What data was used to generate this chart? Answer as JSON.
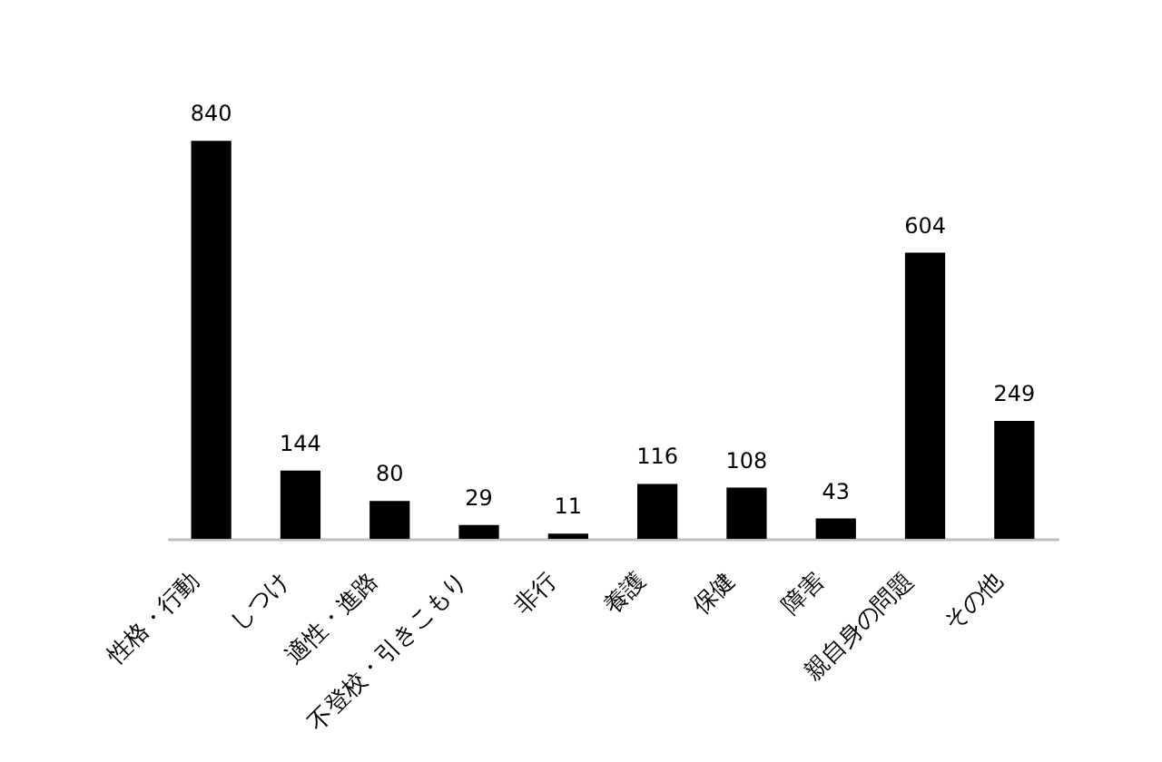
{
  "chart_data": {
    "type": "bar",
    "categories": [
      "性格・行動",
      "しつけ",
      "適性・進路",
      "不登校・引きこもり",
      "非行",
      "養護",
      "保健",
      "障害",
      "親自身の問題",
      "その他"
    ],
    "values": [
      840,
      144,
      80,
      29,
      11,
      116,
      108,
      43,
      604,
      249
    ],
    "color": "#000000",
    "data_labels": true,
    "tick_labels": "x"
  }
}
